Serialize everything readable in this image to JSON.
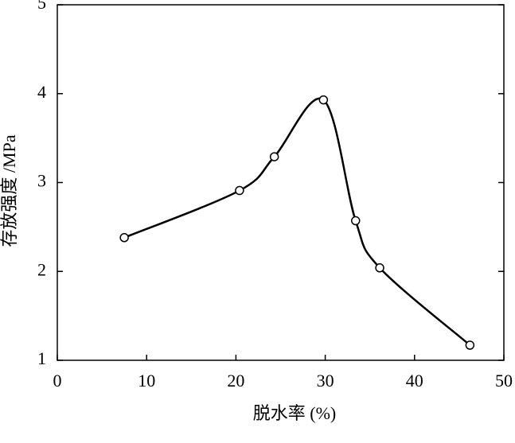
{
  "chart_data": {
    "type": "line",
    "xlabel": "脱水率 (%)",
    "ylabel": "存放强度 /MPa",
    "x": [
      7.5,
      20.4,
      24.3,
      29.8,
      33.4,
      36.1,
      46.2
    ],
    "series": [
      {
        "color": "#000000",
        "values": [
          2.38,
          2.91,
          3.29,
          3.93,
          2.57,
          2.04,
          1.17
        ]
      }
    ],
    "xlim": [
      0,
      50
    ],
    "xticks": [
      0,
      10,
      20,
      30,
      40,
      50
    ],
    "ylim": [
      1,
      5
    ],
    "yticks": [
      1,
      2,
      3,
      4,
      5
    ],
    "grid": false
  }
}
